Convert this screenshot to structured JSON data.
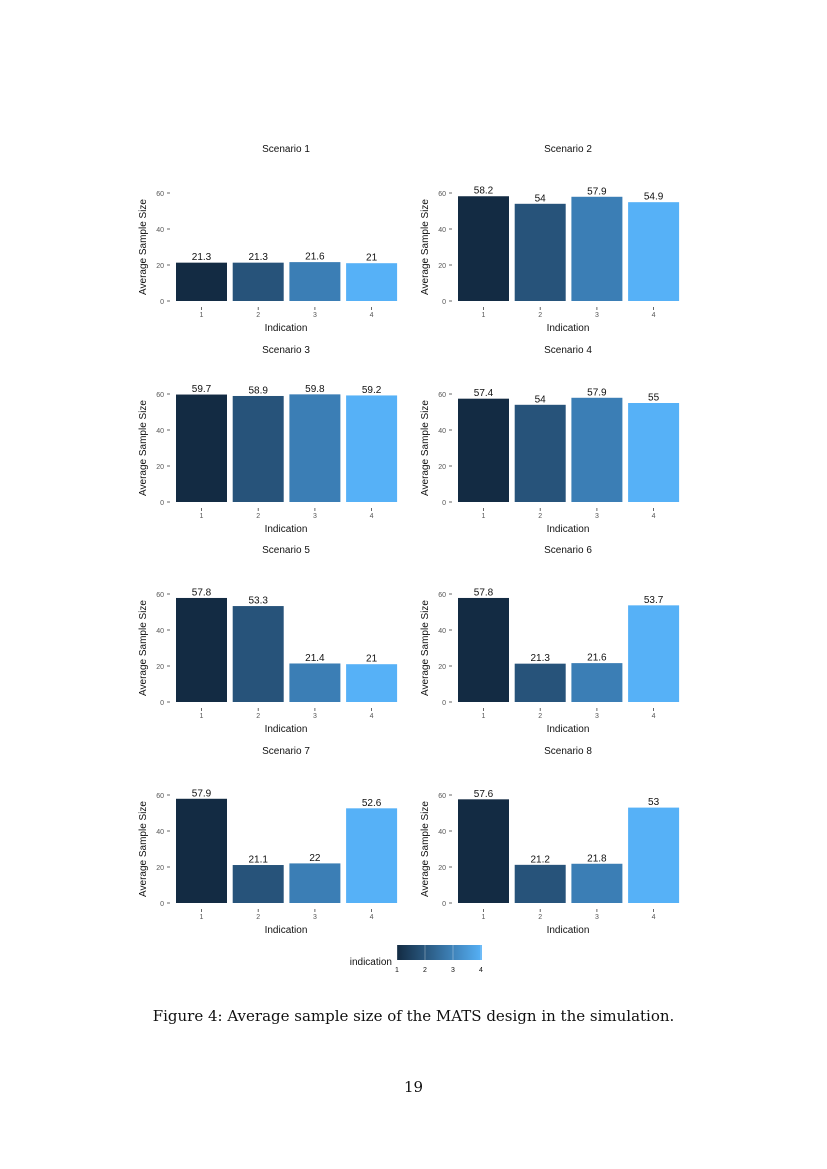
{
  "chart_data": [
    {
      "type": "bar",
      "title": "Scenario 1",
      "xlabel": "Indication",
      "ylabel": "Average Sample Size",
      "categories": [
        "1",
        "2",
        "3",
        "4"
      ],
      "values": [
        21.3,
        21.3,
        21.6,
        21
      ],
      "labels": [
        "21.3",
        "21.3",
        "21.6",
        "21"
      ],
      "ylim": [
        0,
        65
      ],
      "yticks": [
        0,
        20,
        40,
        60
      ],
      "grid": false
    },
    {
      "type": "bar",
      "title": "Scenario 2",
      "xlabel": "Indication",
      "ylabel": "Average Sample Size",
      "categories": [
        "1",
        "2",
        "3",
        "4"
      ],
      "values": [
        58.2,
        54,
        57.9,
        54.9
      ],
      "labels": [
        "58.2",
        "54",
        "57.9",
        "54.9"
      ],
      "ylim": [
        0,
        65
      ],
      "yticks": [
        0,
        20,
        40,
        60
      ],
      "grid": false
    },
    {
      "type": "bar",
      "title": "Scenario 3",
      "xlabel": "Indication",
      "ylabel": "Average Sample Size",
      "categories": [
        "1",
        "2",
        "3",
        "4"
      ],
      "values": [
        59.7,
        58.9,
        59.8,
        59.2
      ],
      "labels": [
        "59.7",
        "58.9",
        "59.8",
        "59.2"
      ],
      "ylim": [
        0,
        65
      ],
      "yticks": [
        0,
        20,
        40,
        60
      ],
      "grid": false
    },
    {
      "type": "bar",
      "title": "Scenario 4",
      "xlabel": "Indication",
      "ylabel": "Average Sample Size",
      "categories": [
        "1",
        "2",
        "3",
        "4"
      ],
      "values": [
        57.4,
        54,
        57.9,
        55
      ],
      "labels": [
        "57.4",
        "54",
        "57.9",
        "55"
      ],
      "ylim": [
        0,
        65
      ],
      "yticks": [
        0,
        20,
        40,
        60
      ],
      "grid": false
    },
    {
      "type": "bar",
      "title": "Scenario 5",
      "xlabel": "Indication",
      "ylabel": "Average Sample Size",
      "categories": [
        "1",
        "2",
        "3",
        "4"
      ],
      "values": [
        57.8,
        53.3,
        21.4,
        21
      ],
      "labels": [
        "57.8",
        "53.3",
        "21.4",
        "21"
      ],
      "ylim": [
        0,
        65
      ],
      "yticks": [
        0,
        20,
        40,
        60
      ],
      "grid": false
    },
    {
      "type": "bar",
      "title": "Scenario 6",
      "xlabel": "Indication",
      "ylabel": "Average Sample Size",
      "categories": [
        "1",
        "2",
        "3",
        "4"
      ],
      "values": [
        57.8,
        21.3,
        21.6,
        53.7
      ],
      "labels": [
        "57.8",
        "21.3",
        "21.6",
        "53.7"
      ],
      "ylim": [
        0,
        65
      ],
      "yticks": [
        0,
        20,
        40,
        60
      ],
      "grid": false
    },
    {
      "type": "bar",
      "title": "Scenario 7",
      "xlabel": "Indication",
      "ylabel": "Average Sample Size",
      "categories": [
        "1",
        "2",
        "3",
        "4"
      ],
      "values": [
        57.9,
        21.1,
        22,
        52.6
      ],
      "labels": [
        "57.9",
        "21.1",
        "22",
        "52.6"
      ],
      "ylim": [
        0,
        65
      ],
      "yticks": [
        0,
        20,
        40,
        60
      ],
      "grid": false
    },
    {
      "type": "bar",
      "title": "Scenario 8",
      "xlabel": "Indication",
      "ylabel": "Average Sample Size",
      "categories": [
        "1",
        "2",
        "3",
        "4"
      ],
      "values": [
        57.6,
        21.2,
        21.8,
        53
      ],
      "labels": [
        "57.6",
        "21.2",
        "21.8",
        "53"
      ],
      "ylim": [
        0,
        65
      ],
      "yticks": [
        0,
        20,
        40,
        60
      ],
      "grid": false
    }
  ],
  "legend": {
    "title": "indication",
    "ticks": [
      "1",
      "2",
      "3",
      "4"
    ],
    "placement": "bottom",
    "color_low": "#132B43",
    "color_high": "#56B1F7"
  },
  "colors": [
    "#132B43",
    "#27537A",
    "#3B7EB5",
    "#56B1F7"
  ],
  "caption": "Figure 4: Average sample size of the MATS design in the simulation.",
  "page_number": "19"
}
